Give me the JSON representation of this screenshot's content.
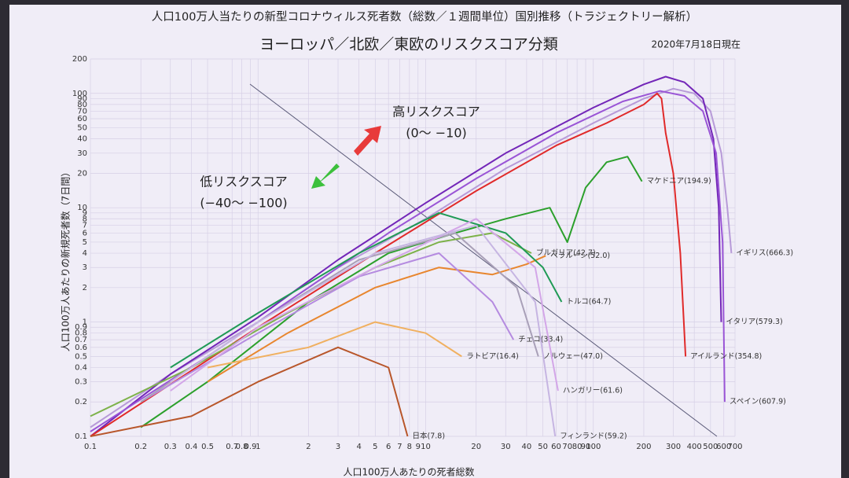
{
  "chart_data": {
    "type": "line",
    "title": "人口100万人当たりの新型コロナウィルス死者数（総数／１週間単位）国別推移（トラジェクトリー解析）",
    "subtitle": "ヨーロッパ／北欧／東欧のリスクスコア分類",
    "date": "2020年7月18日現在",
    "x_label": "人口100万人あたりの死者総数",
    "y_label": "人口100万人あたりの新規死者数（7日間）",
    "annotations": [
      "高リスクスコア",
      "(0〜 −10)",
      "低リスクスコア",
      "(−40〜 −100)"
    ],
    "xscale": "log",
    "yscale": "log",
    "grid": true,
    "xlim": [
      0.1,
      700
    ],
    "ylim": [
      0.1,
      200
    ],
    "xticks": [
      0.1,
      0.2,
      0.3,
      0.4,
      0.5,
      0.7,
      0.8,
      0.9,
      1,
      2,
      3,
      4,
      5,
      6,
      7,
      8,
      9,
      10,
      20,
      30,
      40,
      50,
      60,
      70,
      80,
      90,
      100,
      200,
      300,
      400,
      500,
      600,
      700
    ],
    "yticks": [
      0.1,
      0.2,
      0.3,
      0.4,
      0.5,
      0.6,
      0.7,
      0.8,
      0.9,
      1,
      2,
      3,
      4,
      5,
      6,
      7,
      8,
      9,
      10,
      20,
      30,
      40,
      50,
      60,
      70,
      80,
      90,
      100,
      200
    ],
    "series": [
      {
        "name": "イギリス(666.3)",
        "color": "#b79ad8",
        "x": [
          0.1,
          0.3,
          1,
          3,
          10,
          30,
          100,
          200,
          300,
          400,
          500,
          580,
          630,
          666.3
        ],
        "values": [
          0.12,
          0.35,
          1,
          3,
          8,
          22,
          55,
          90,
          110,
          100,
          70,
          30,
          10,
          4
        ]
      },
      {
        "name": "イタリア(579.3)",
        "color": "#7326b8",
        "x": [
          0.1,
          0.3,
          1,
          3,
          10,
          30,
          100,
          200,
          270,
          350,
          450,
          520,
          560,
          579.3
        ],
        "values": [
          0.1,
          0.35,
          1.1,
          3.5,
          11,
          30,
          75,
          120,
          140,
          125,
          90,
          40,
          10,
          1
        ]
      },
      {
        "name": "スペイン(607.9)",
        "color": "#9a55d6",
        "x": [
          0.1,
          0.5,
          2,
          6,
          20,
          60,
          150,
          250,
          350,
          450,
          540,
          590,
          607.9
        ],
        "values": [
          0.11,
          0.5,
          2,
          6,
          18,
          45,
          85,
          105,
          95,
          70,
          30,
          5,
          0.2
        ]
      },
      {
        "name": "アイルランド(354.8)",
        "color": "#e02a2a",
        "x": [
          0.1,
          1,
          5,
          20,
          60,
          120,
          200,
          240,
          255,
          270,
          300,
          330,
          354.8
        ],
        "values": [
          0.1,
          0.9,
          4,
          14,
          35,
          55,
          80,
          100,
          90,
          45,
          20,
          4,
          0.5
        ]
      },
      {
        "name": "マケドニア(194.9)",
        "color": "#2ca02c",
        "x": [
          0.2,
          0.5,
          2,
          6,
          15,
          30,
          55,
          70,
          90,
          120,
          160,
          194.9
        ],
        "values": [
          0.12,
          0.3,
          1.5,
          4,
          6,
          8,
          10,
          5,
          15,
          25,
          28,
          17
        ]
      },
      {
        "name": "ブルガリア(42.7)",
        "color": "#7db24a",
        "x": [
          0.1,
          0.4,
          1.5,
          5,
          12,
          25,
          42.7
        ],
        "values": [
          0.15,
          0.4,
          1.2,
          3,
          5,
          6,
          4
        ]
      },
      {
        "name": "ベラルーシ(52.0)",
        "color": "#e8862e",
        "x": [
          0.5,
          1.5,
          5,
          12,
          25,
          40,
          52
        ],
        "values": [
          0.3,
          0.8,
          2,
          3,
          2.6,
          3.2,
          3.8
        ]
      },
      {
        "name": "トルコ(64.7)",
        "color": "#1f9a55",
        "x": [
          0.3,
          1,
          4,
          12,
          30,
          50,
          64.7
        ],
        "values": [
          0.4,
          1.2,
          4,
          9,
          6,
          3,
          1.5
        ]
      },
      {
        "name": "ラトビア(16.4)",
        "color": "#f0b060",
        "x": [
          0.5,
          2,
          5,
          10,
          16.4
        ],
        "values": [
          0.4,
          0.6,
          1,
          0.8,
          0.5
        ]
      },
      {
        "name": "チェコ(33.4)",
        "color": "#b58be0",
        "x": [
          0.2,
          1,
          4,
          12,
          25,
          33.4
        ],
        "values": [
          0.2,
          0.8,
          2.5,
          4,
          1.5,
          0.7
        ]
      },
      {
        "name": "ノルウェー(47.0)",
        "color": "#a9a0b8",
        "x": [
          0.2,
          1,
          4,
          15,
          35,
          47
        ],
        "values": [
          0.2,
          1,
          3.5,
          6,
          2,
          0.5
        ]
      },
      {
        "name": "ハンガリー(61.6)",
        "color": "#d3a6e8",
        "x": [
          0.3,
          1,
          5,
          20,
          45,
          61.6
        ],
        "values": [
          0.25,
          0.9,
          3,
          8,
          3,
          0.25
        ]
      },
      {
        "name": "フィンランド(59.2)",
        "color": "#c6b5e2",
        "x": [
          0.3,
          1,
          5,
          20,
          45,
          59.2
        ],
        "values": [
          0.3,
          1,
          4,
          7,
          1.5,
          0.1
        ]
      },
      {
        "name": "日本(7.8)",
        "color": "#b8562a",
        "x": [
          0.1,
          0.4,
          1,
          3,
          6,
          7.8
        ],
        "values": [
          0.1,
          0.15,
          0.3,
          0.6,
          0.4,
          0.1
        ]
      }
    ]
  }
}
